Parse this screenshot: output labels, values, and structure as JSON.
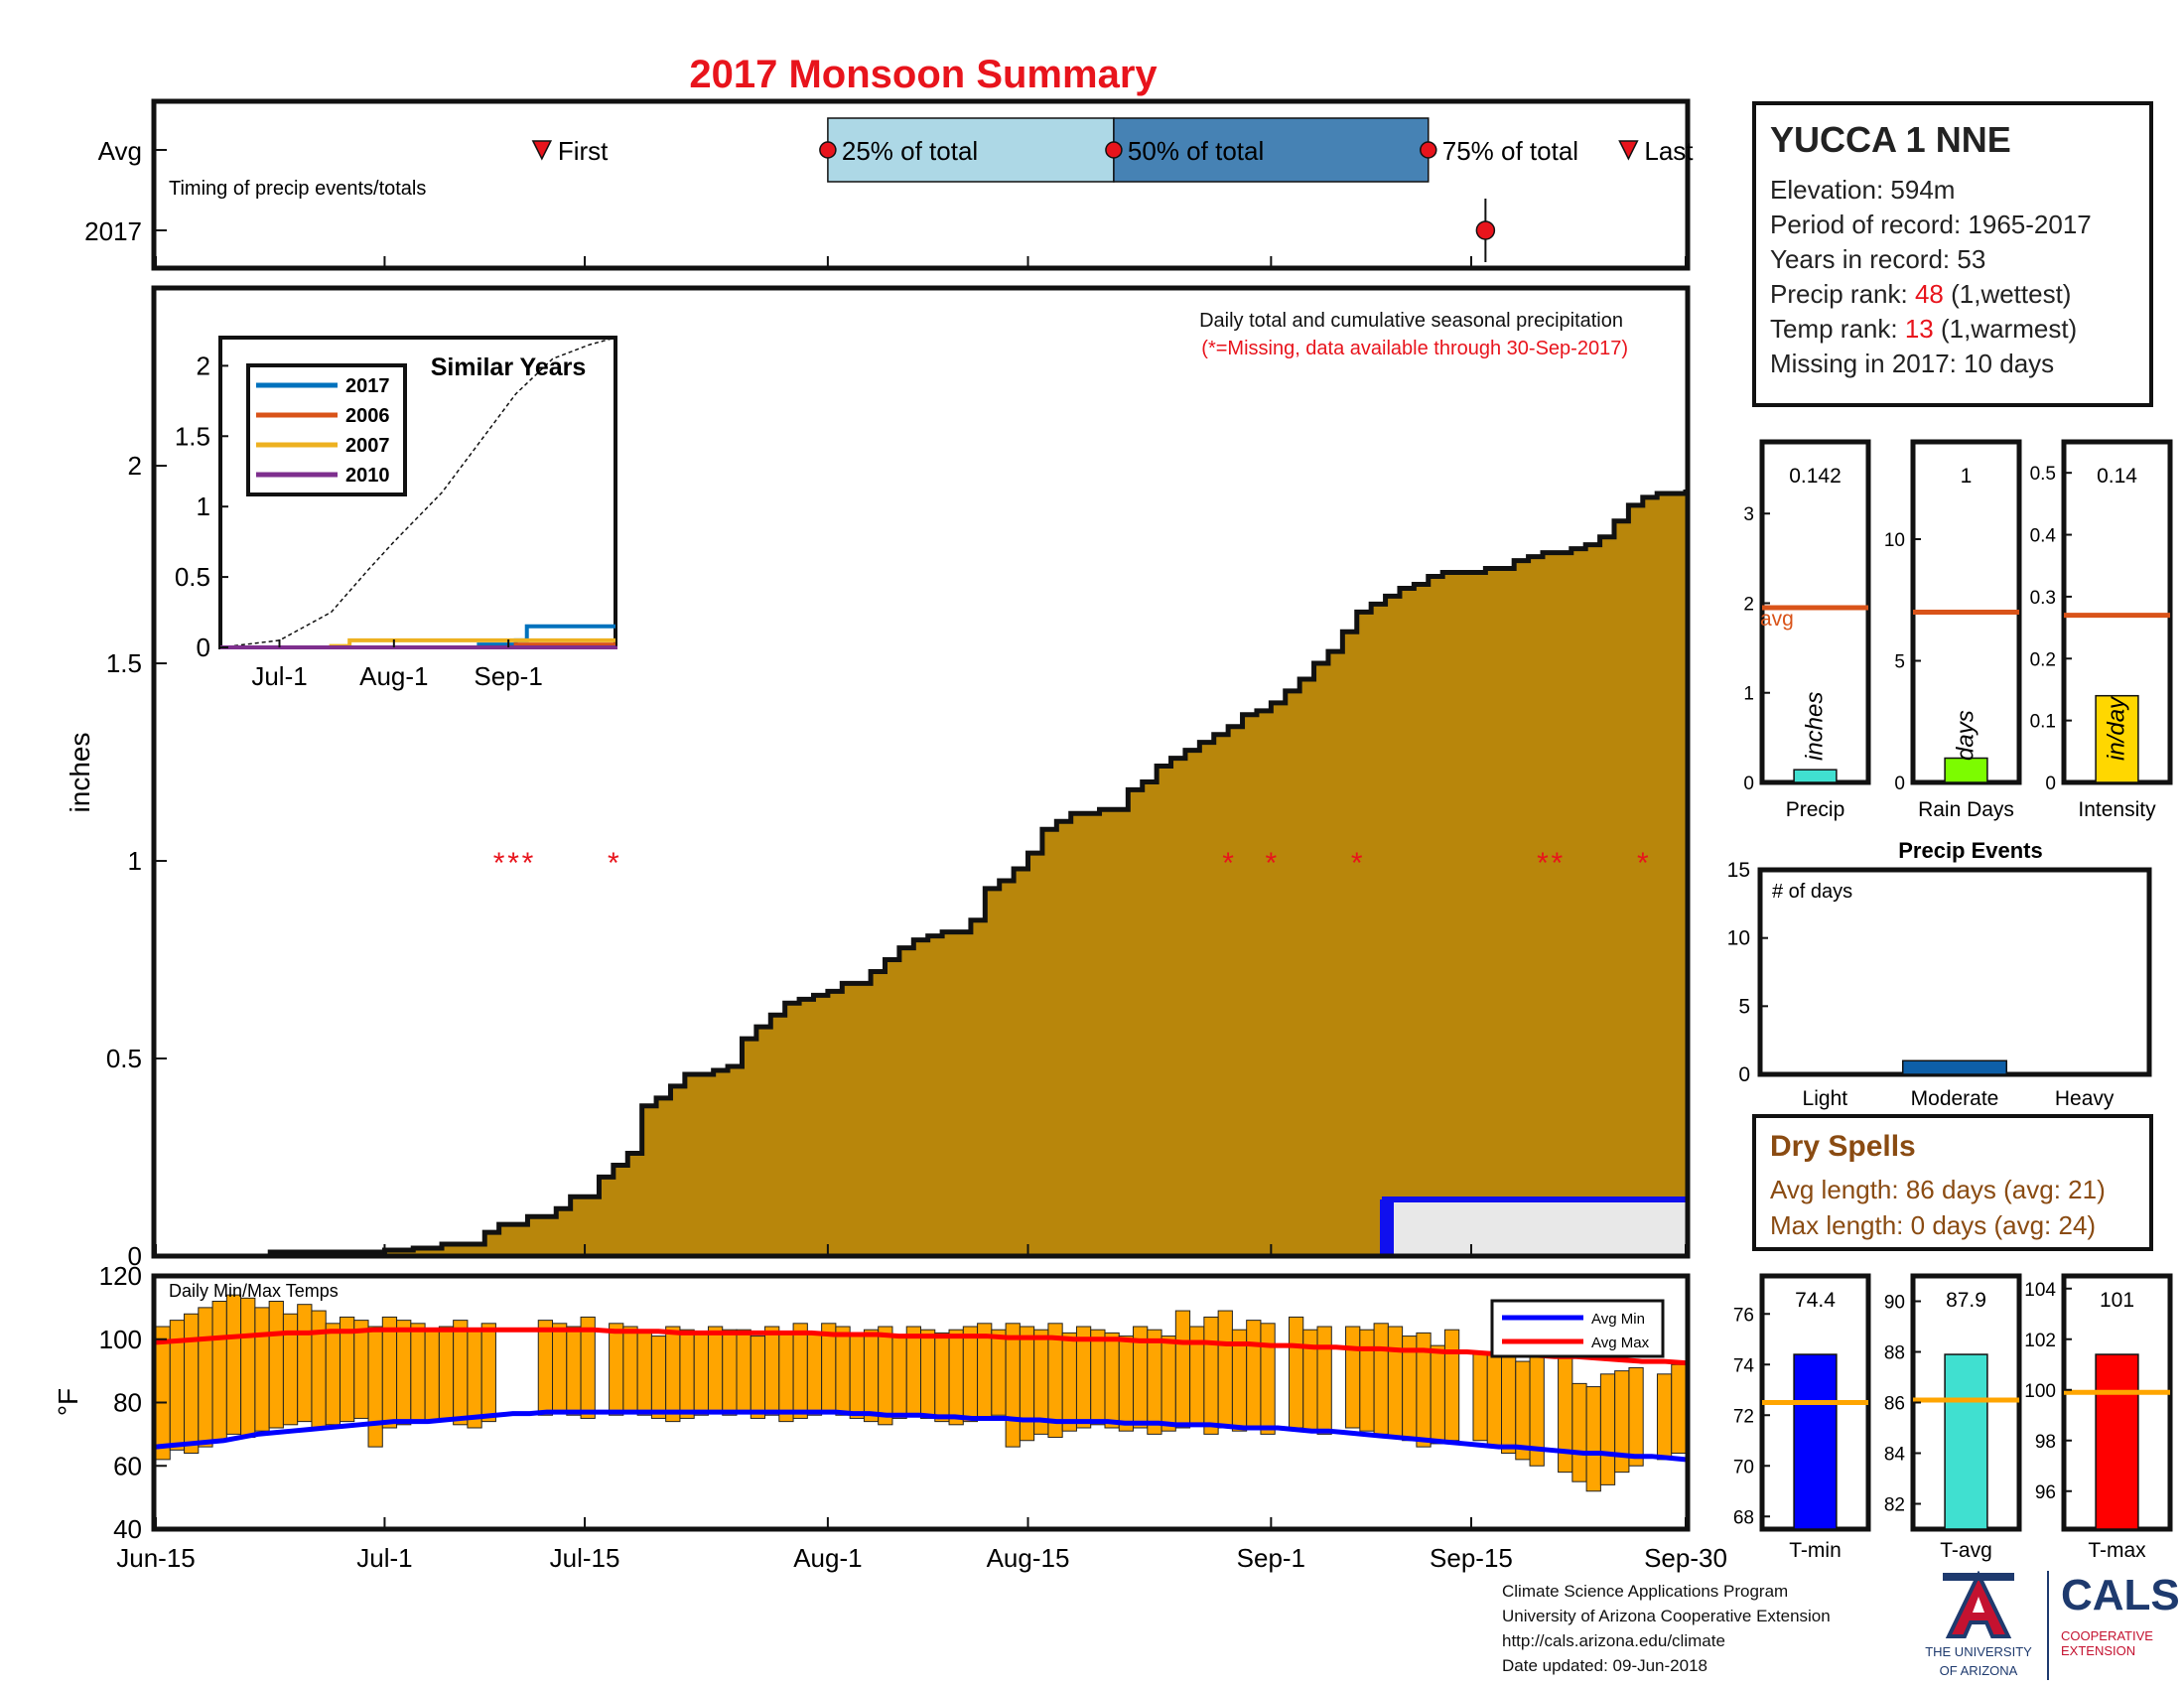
{
  "title": "2017 Monsoon Summary",
  "station": {
    "name": "YUCCA 1 NNE",
    "elevation": "Elevation: 594m",
    "period": "Period of record: 1965-2017",
    "years": "Years in record: 53",
    "precip_rank_label": "Precip rank: ",
    "precip_rank_value": "48",
    "precip_rank_note": " (1,wettest)",
    "temp_rank_label": "Temp rank: ",
    "temp_rank_value": "13",
    "temp_rank_note": " (1,warmest)",
    "missing": "Missing in 2017: 10 days"
  },
  "timing": {
    "row_avg": "Avg",
    "row_year": "2017",
    "caption": "Timing of precip events/totals",
    "first": "First",
    "q25": "25% of total",
    "q50": "50% of total",
    "q75": "75% of total",
    "last": "Last",
    "colors": {
      "light_box": "#add8e6",
      "dark_box": "#4682b4",
      "marker": "#e8141c"
    }
  },
  "main": {
    "caption": "Daily total and cumulative seasonal precipitation",
    "missing_note": "(*=Missing, data available through 30-Sep-2017)",
    "ylabel": "inches",
    "fill_color": "#b8860b"
  },
  "inset": {
    "title": "Similar Years",
    "legend": [
      "2017",
      "2006",
      "2007",
      "2010"
    ],
    "legend_colors": [
      "#0072bd",
      "#d95319",
      "#edb120",
      "#7e2f8e"
    ],
    "xticks": [
      "Jul-1",
      "Aug-1",
      "Sep-1"
    ],
    "yticks": [
      "0",
      "0.5",
      "1",
      "1.5",
      "2"
    ]
  },
  "temps": {
    "caption": "Daily Min/Max Temps",
    "ylabel": "°F",
    "legend_min": "Avg Min",
    "legend_max": "Avg Max",
    "bar_color": "#ffa500",
    "min_color": "#0000ff",
    "max_color": "#ff0000"
  },
  "xaxis": {
    "ticks": [
      "Jun-15",
      "Jul-1",
      "Jul-15",
      "Aug-1",
      "Aug-15",
      "Sep-1",
      "Sep-15",
      "Sep-30"
    ]
  },
  "mini_bars": {
    "avg_label": "avg",
    "precip": {
      "label": "Precip",
      "unit": "inches",
      "value_text": "0.142",
      "yticks": [
        "0",
        "1",
        "2",
        "3"
      ]
    },
    "raindays": {
      "label": "Rain Days",
      "unit": "days",
      "value_text": "1",
      "yticks": [
        "0",
        "5",
        "10"
      ]
    },
    "intensity": {
      "label": "Intensity",
      "unit": "in/day",
      "value_text": "0.14",
      "yticks": [
        "0",
        "0.1",
        "0.2",
        "0.3",
        "0.4",
        "0.5"
      ]
    }
  },
  "events": {
    "title": "Precip Events",
    "ylabel": "# of days",
    "categories": [
      "Light",
      "Moderate",
      "Heavy"
    ],
    "yticks": [
      "0",
      "5",
      "10",
      "15"
    ]
  },
  "dry_spells": {
    "title": "Dry Spells",
    "avg": "Avg length: 86 days (avg: 21)",
    "max": "Max length: 0 days (avg: 24)"
  },
  "temp_bars": {
    "tmin": {
      "label": "T-min",
      "value_text": "74.4",
      "yticks": [
        "68",
        "70",
        "72",
        "74",
        "76"
      ]
    },
    "tavg": {
      "label": "T-avg",
      "value_text": "87.9",
      "yticks": [
        "82",
        "84",
        "86",
        "88",
        "90"
      ]
    },
    "tmax": {
      "label": "T-max",
      "value_text": "101",
      "yticks": [
        "96",
        "98",
        "100",
        "102",
        "104"
      ]
    }
  },
  "credits": {
    "line1": "Climate Science Applications Program",
    "line2": "University of Arizona Cooperative Extension",
    "line3": "http://cals.arizona.edu/climate",
    "line4": " Date updated: 09-Jun-2018"
  },
  "logos": {
    "ua_line1": "THE UNIVERSITY",
    "ua_line2": "OF ARIZONA",
    "cals": "CALS",
    "cals_line1": "COOPERATIVE",
    "cals_line2": "EXTENSION"
  },
  "chart_data": [
    {
      "type": "area",
      "name": "cumulative_precip",
      "x_dates": [
        "Jun-15",
        "Jun-23",
        "Jul-1",
        "Jul-3",
        "Jul-5",
        "Jul-8",
        "Jul-9",
        "Jul-11",
        "Jul-13",
        "Jul-14",
        "Jul-16",
        "Jul-17",
        "Jul-18",
        "Jul-19",
        "Jul-20",
        "Jul-21",
        "Jul-22",
        "Jul-24",
        "Jul-25",
        "Jul-26",
        "Jul-27",
        "Jul-28",
        "Jul-29",
        "Jul-30",
        "Jul-31",
        "Aug-1",
        "Aug-2",
        "Aug-4",
        "Aug-5",
        "Aug-6",
        "Aug-7",
        "Aug-8",
        "Aug-9",
        "Aug-11",
        "Aug-12",
        "Aug-13",
        "Aug-14",
        "Aug-15",
        "Aug-16",
        "Aug-17",
        "Aug-18",
        "Aug-20",
        "Aug-22",
        "Aug-23",
        "Aug-24",
        "Aug-25",
        "Aug-26",
        "Aug-27",
        "Aug-28",
        "Aug-29",
        "Aug-30",
        "Aug-31",
        "Sep-1",
        "Sep-2",
        "Sep-3",
        "Sep-4",
        "Sep-5",
        "Sep-6",
        "Sep-7",
        "Sep-8",
        "Sep-9",
        "Sep-10",
        "Sep-11",
        "Sep-12",
        "Sep-13",
        "Sep-14",
        "Sep-16",
        "Sep-18",
        "Sep-19",
        "Sep-20",
        "Sep-21",
        "Sep-22",
        "Sep-23",
        "Sep-24",
        "Sep-25",
        "Sep-26",
        "Sep-27",
        "Sep-28",
        "Sep-29",
        "Sep-30"
      ],
      "x_day": [
        0,
        8,
        16,
        18,
        20,
        23,
        24,
        26,
        28,
        29,
        31,
        32,
        33,
        34,
        35,
        36,
        37,
        39,
        40,
        41,
        42,
        43,
        44,
        45,
        46,
        47,
        48,
        50,
        51,
        52,
        53,
        54,
        55,
        57,
        58,
        59,
        60,
        61,
        62,
        63,
        64,
        66,
        68,
        69,
        70,
        71,
        72,
        73,
        74,
        75,
        76,
        77,
        78,
        79,
        80,
        81,
        82,
        83,
        84,
        85,
        86,
        87,
        88,
        89,
        90,
        91,
        93,
        95,
        96,
        97,
        98,
        99,
        100,
        101,
        102,
        103,
        104,
        105,
        106,
        107
      ],
      "y": [
        0,
        0.01,
        0.015,
        0.02,
        0.03,
        0.06,
        0.08,
        0.1,
        0.12,
        0.15,
        0.2,
        0.23,
        0.26,
        0.38,
        0.4,
        0.43,
        0.46,
        0.47,
        0.48,
        0.55,
        0.58,
        0.61,
        0.64,
        0.65,
        0.66,
        0.67,
        0.69,
        0.72,
        0.75,
        0.78,
        0.8,
        0.81,
        0.82,
        0.85,
        0.93,
        0.95,
        0.98,
        1.02,
        1.08,
        1.1,
        1.12,
        1.13,
        1.18,
        1.2,
        1.24,
        1.26,
        1.28,
        1.3,
        1.32,
        1.34,
        1.37,
        1.38,
        1.4,
        1.43,
        1.46,
        1.5,
        1.53,
        1.58,
        1.63,
        1.65,
        1.67,
        1.69,
        1.7,
        1.72,
        1.73,
        1.73,
        1.74,
        1.76,
        1.77,
        1.78,
        1.78,
        1.79,
        1.8,
        1.82,
        1.86,
        1.9,
        1.92,
        1.93,
        1.93,
        1.94
      ],
      "missing_days": [
        24,
        25,
        26,
        32,
        75,
        78,
        84,
        97,
        98,
        104
      ],
      "ylim": [
        0,
        2.45
      ],
      "yticks": [
        0,
        0.5,
        1,
        1.5,
        2
      ],
      "grid": false
    },
    {
      "type": "line",
      "name": "similar_years_inset",
      "xlim_day": [
        0,
        107
      ],
      "ylim": [
        0,
        2
      ],
      "series": [
        {
          "name": "2017",
          "x_day": [
            0,
            70,
            80,
            83,
            107
          ],
          "y": [
            0,
            0.02,
            0.05,
            0.15,
            0.15
          ]
        },
        {
          "name": "2006",
          "x_day": [
            0,
            80,
            107
          ],
          "y": [
            0,
            0.02,
            0.02
          ]
        },
        {
          "name": "2007",
          "x_day": [
            0,
            30,
            35,
            107
          ],
          "y": [
            0,
            0.01,
            0.05,
            0.05
          ]
        },
        {
          "name": "2010",
          "x_day": [
            0,
            107
          ],
          "y": [
            0,
            0.01
          ]
        }
      ],
      "average": {
        "x_day": [
          0,
          16,
          30,
          40,
          47,
          60,
          70,
          80,
          90,
          100,
          107
        ],
        "y": [
          0,
          0.05,
          0.25,
          0.55,
          0.75,
          1.1,
          1.45,
          1.8,
          2.05,
          2.15,
          2.3
        ]
      }
    },
    {
      "type": "bar",
      "name": "daily_temps",
      "ylim": [
        40,
        120
      ],
      "yticks": [
        40,
        60,
        80,
        100,
        120
      ],
      "tmin": [
        62,
        65,
        64,
        66,
        68,
        70,
        69,
        71,
        72,
        73,
        74,
        72,
        73,
        74,
        75,
        66,
        72,
        73,
        74,
        74,
        75,
        73,
        72,
        74,
        0,
        0,
        0,
        76,
        77,
        76,
        75,
        0,
        76,
        77,
        76,
        75,
        74,
        75,
        76,
        77,
        76,
        77,
        75,
        76,
        74,
        75,
        76,
        77,
        76,
        75,
        74,
        73,
        75,
        76,
        75,
        74,
        73,
        74,
        75,
        76,
        66,
        68,
        70,
        69,
        71,
        72,
        73,
        72,
        71,
        72,
        70,
        71,
        72,
        73,
        70,
        72,
        71,
        72,
        70,
        0,
        72,
        71,
        70,
        0,
        72,
        71,
        70,
        69,
        68,
        66,
        67,
        68,
        0,
        68,
        66,
        64,
        62,
        60,
        0,
        58,
        55,
        52,
        54,
        58,
        60,
        0,
        62,
        64
      ],
      "tmax": [
        104,
        106,
        108,
        110,
        112,
        114,
        113,
        110,
        112,
        108,
        111,
        109,
        105,
        107,
        106,
        104,
        107,
        106,
        105,
        103,
        104,
        106,
        103,
        105,
        0,
        0,
        0,
        106,
        105,
        104,
        107,
        0,
        105,
        104,
        102,
        101,
        104,
        103,
        102,
        104,
        103,
        103,
        101,
        104,
        102,
        105,
        102,
        105,
        104,
        101,
        103,
        104,
        101,
        104,
        103,
        102,
        103,
        104,
        105,
        103,
        105,
        104,
        103,
        105,
        102,
        104,
        103,
        102,
        101,
        104,
        103,
        101,
        109,
        104,
        107,
        109,
        103,
        106,
        105,
        0,
        107,
        103,
        104,
        0,
        104,
        103,
        105,
        104,
        101,
        102,
        98,
        103,
        0,
        96,
        95,
        98,
        93,
        95,
        0,
        94,
        86,
        85,
        89,
        90,
        91,
        0,
        89,
        92
      ],
      "avg_min": [
        66,
        66.5,
        67,
        67.5,
        68,
        69,
        70,
        70.5,
        71,
        71.5,
        72,
        72.5,
        73,
        73.5,
        74,
        74,
        74,
        74.5,
        75,
        75.5,
        76,
        76.5,
        76.5,
        77,
        77,
        77,
        77,
        77,
        77,
        77,
        77,
        77,
        77,
        77,
        77,
        77,
        77,
        77,
        77,
        77,
        77,
        76.5,
        76.5,
        76,
        76,
        76,
        75.5,
        75.5,
        75,
        75,
        75,
        74.5,
        74.5,
        74,
        74,
        74,
        74,
        73.5,
        73.5,
        73.5,
        73,
        73,
        73,
        72.5,
        72,
        72,
        72,
        71.5,
        71,
        71,
        70.5,
        70,
        69.5,
        69,
        68.5,
        68,
        67.5,
        67,
        66.5,
        66,
        66,
        65.5,
        65,
        64.5,
        64,
        64,
        63.5,
        63,
        63,
        62.5,
        62
      ],
      "avg_max": [
        99,
        99.5,
        100,
        100.5,
        101,
        101.5,
        102,
        102,
        102.5,
        102.5,
        103,
        103,
        103,
        103,
        103,
        103,
        103,
        103,
        103,
        103,
        103,
        102.5,
        102.5,
        102.5,
        102,
        102,
        102,
        102,
        102,
        102,
        102,
        101.5,
        101.5,
        101.5,
        101,
        101,
        101,
        101,
        101,
        100.5,
        100.5,
        100.5,
        100,
        100,
        100,
        99.5,
        99.5,
        99,
        99,
        98.5,
        98.5,
        98,
        98,
        97.5,
        97.5,
        97,
        97,
        96.5,
        96.5,
        96,
        96,
        95.5,
        95.5,
        95,
        94.5,
        94.5,
        94,
        93.5,
        93,
        93,
        92.5
      ]
    },
    {
      "type": "bar",
      "name": "precip_mini",
      "categories": [
        "Precip"
      ],
      "values": [
        0.142
      ],
      "avg": 1.95,
      "ylim": [
        0,
        3.8
      ]
    },
    {
      "type": "bar",
      "name": "raindays_mini",
      "categories": [
        "Rain Days"
      ],
      "values": [
        1
      ],
      "avg": 7,
      "ylim": [
        0,
        14
      ]
    },
    {
      "type": "bar",
      "name": "intensity_mini",
      "categories": [
        "Intensity"
      ],
      "values": [
        0.14
      ],
      "avg": 0.27,
      "ylim": [
        0,
        0.55
      ]
    },
    {
      "type": "bar",
      "name": "precip_events",
      "categories": [
        "Light",
        "Moderate",
        "Heavy"
      ],
      "values": [
        0,
        1,
        0
      ],
      "ylim": [
        0,
        15
      ]
    },
    {
      "type": "bar",
      "name": "temp_bars",
      "categories": [
        "T-min",
        "T-avg",
        "T-max"
      ],
      "values": [
        74.4,
        87.9,
        101.4
      ],
      "avgs": [
        72.5,
        86.1,
        99.9
      ],
      "ylims": [
        [
          67.5,
          77.5
        ],
        [
          81,
          91
        ],
        [
          94.5,
          104.5
        ]
      ]
    },
    {
      "type": "bar",
      "name": "timing",
      "avg_markers_day": {
        "first": 27,
        "q25": 47,
        "q50": 67,
        "q75": 89,
        "last": 103
      },
      "year_marker_day": 93
    }
  ]
}
